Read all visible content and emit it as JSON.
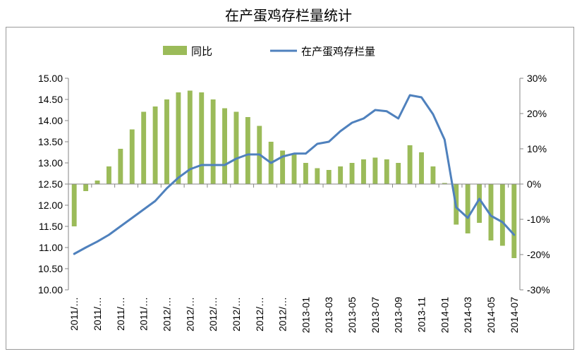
{
  "title": "在产蛋鸡存栏量统计",
  "chart_data": {
    "type": "bar+line",
    "legend": {
      "position": "top",
      "items": [
        "同比",
        "在产蛋鸡存栏量"
      ]
    },
    "colors": {
      "bar": "#9bbb59",
      "line": "#4f81bd"
    },
    "left_axis": {
      "ylim": [
        10.0,
        15.0
      ],
      "ticks": [
        "10.00",
        "10.50",
        "11.00",
        "11.50",
        "12.00",
        "12.50",
        "13.00",
        "13.50",
        "14.00",
        "14.50",
        "15.00"
      ]
    },
    "right_axis": {
      "ylim": [
        -30,
        30
      ],
      "ticks": [
        "-30%",
        "-20%",
        "-10%",
        "0%",
        "10%",
        "20%",
        "30%"
      ]
    },
    "x_tick_labels": [
      "2011/…",
      "2011/…",
      "2011/…",
      "2011/…",
      "2012/…",
      "2012/…",
      "2012/…",
      "2012/…",
      "2012/…",
      "2012/…",
      "2013-01",
      "2013-03",
      "2013-05",
      "2013-07",
      "2013-09",
      "2013-11",
      "2014-01",
      "2014-03",
      "2014-05",
      "2014-07"
    ],
    "series": [
      {
        "name": "同比",
        "axis": "right",
        "type": "bar",
        "values": [
          -12.0,
          -2.0,
          1.0,
          5.0,
          10.0,
          15.5,
          20.5,
          22.0,
          24.0,
          26.0,
          26.5,
          26.0,
          24.0,
          21.5,
          20.5,
          19.0,
          16.5,
          12.0,
          9.5,
          8.5,
          6.0,
          4.5,
          4.0,
          5.0,
          6.0,
          7.0,
          7.5,
          7.0,
          6.0,
          11.0,
          9.0,
          5.0,
          0.3,
          -11.5,
          -14.0,
          -11.0,
          -16.0,
          -17.5,
          -21.0
        ]
      },
      {
        "name": "在产蛋鸡存栏量",
        "axis": "left",
        "type": "line",
        "values": [
          10.85,
          11.0,
          11.14,
          11.3,
          11.5,
          11.7,
          11.9,
          12.1,
          12.4,
          12.65,
          12.85,
          12.95,
          12.95,
          12.95,
          13.1,
          13.2,
          13.2,
          13.0,
          13.15,
          13.22,
          13.22,
          13.45,
          13.5,
          13.75,
          13.95,
          14.05,
          14.25,
          14.22,
          14.05,
          14.6,
          14.55,
          14.15,
          13.55,
          11.95,
          11.7,
          12.15,
          11.75,
          11.6,
          11.3
        ]
      }
    ]
  }
}
